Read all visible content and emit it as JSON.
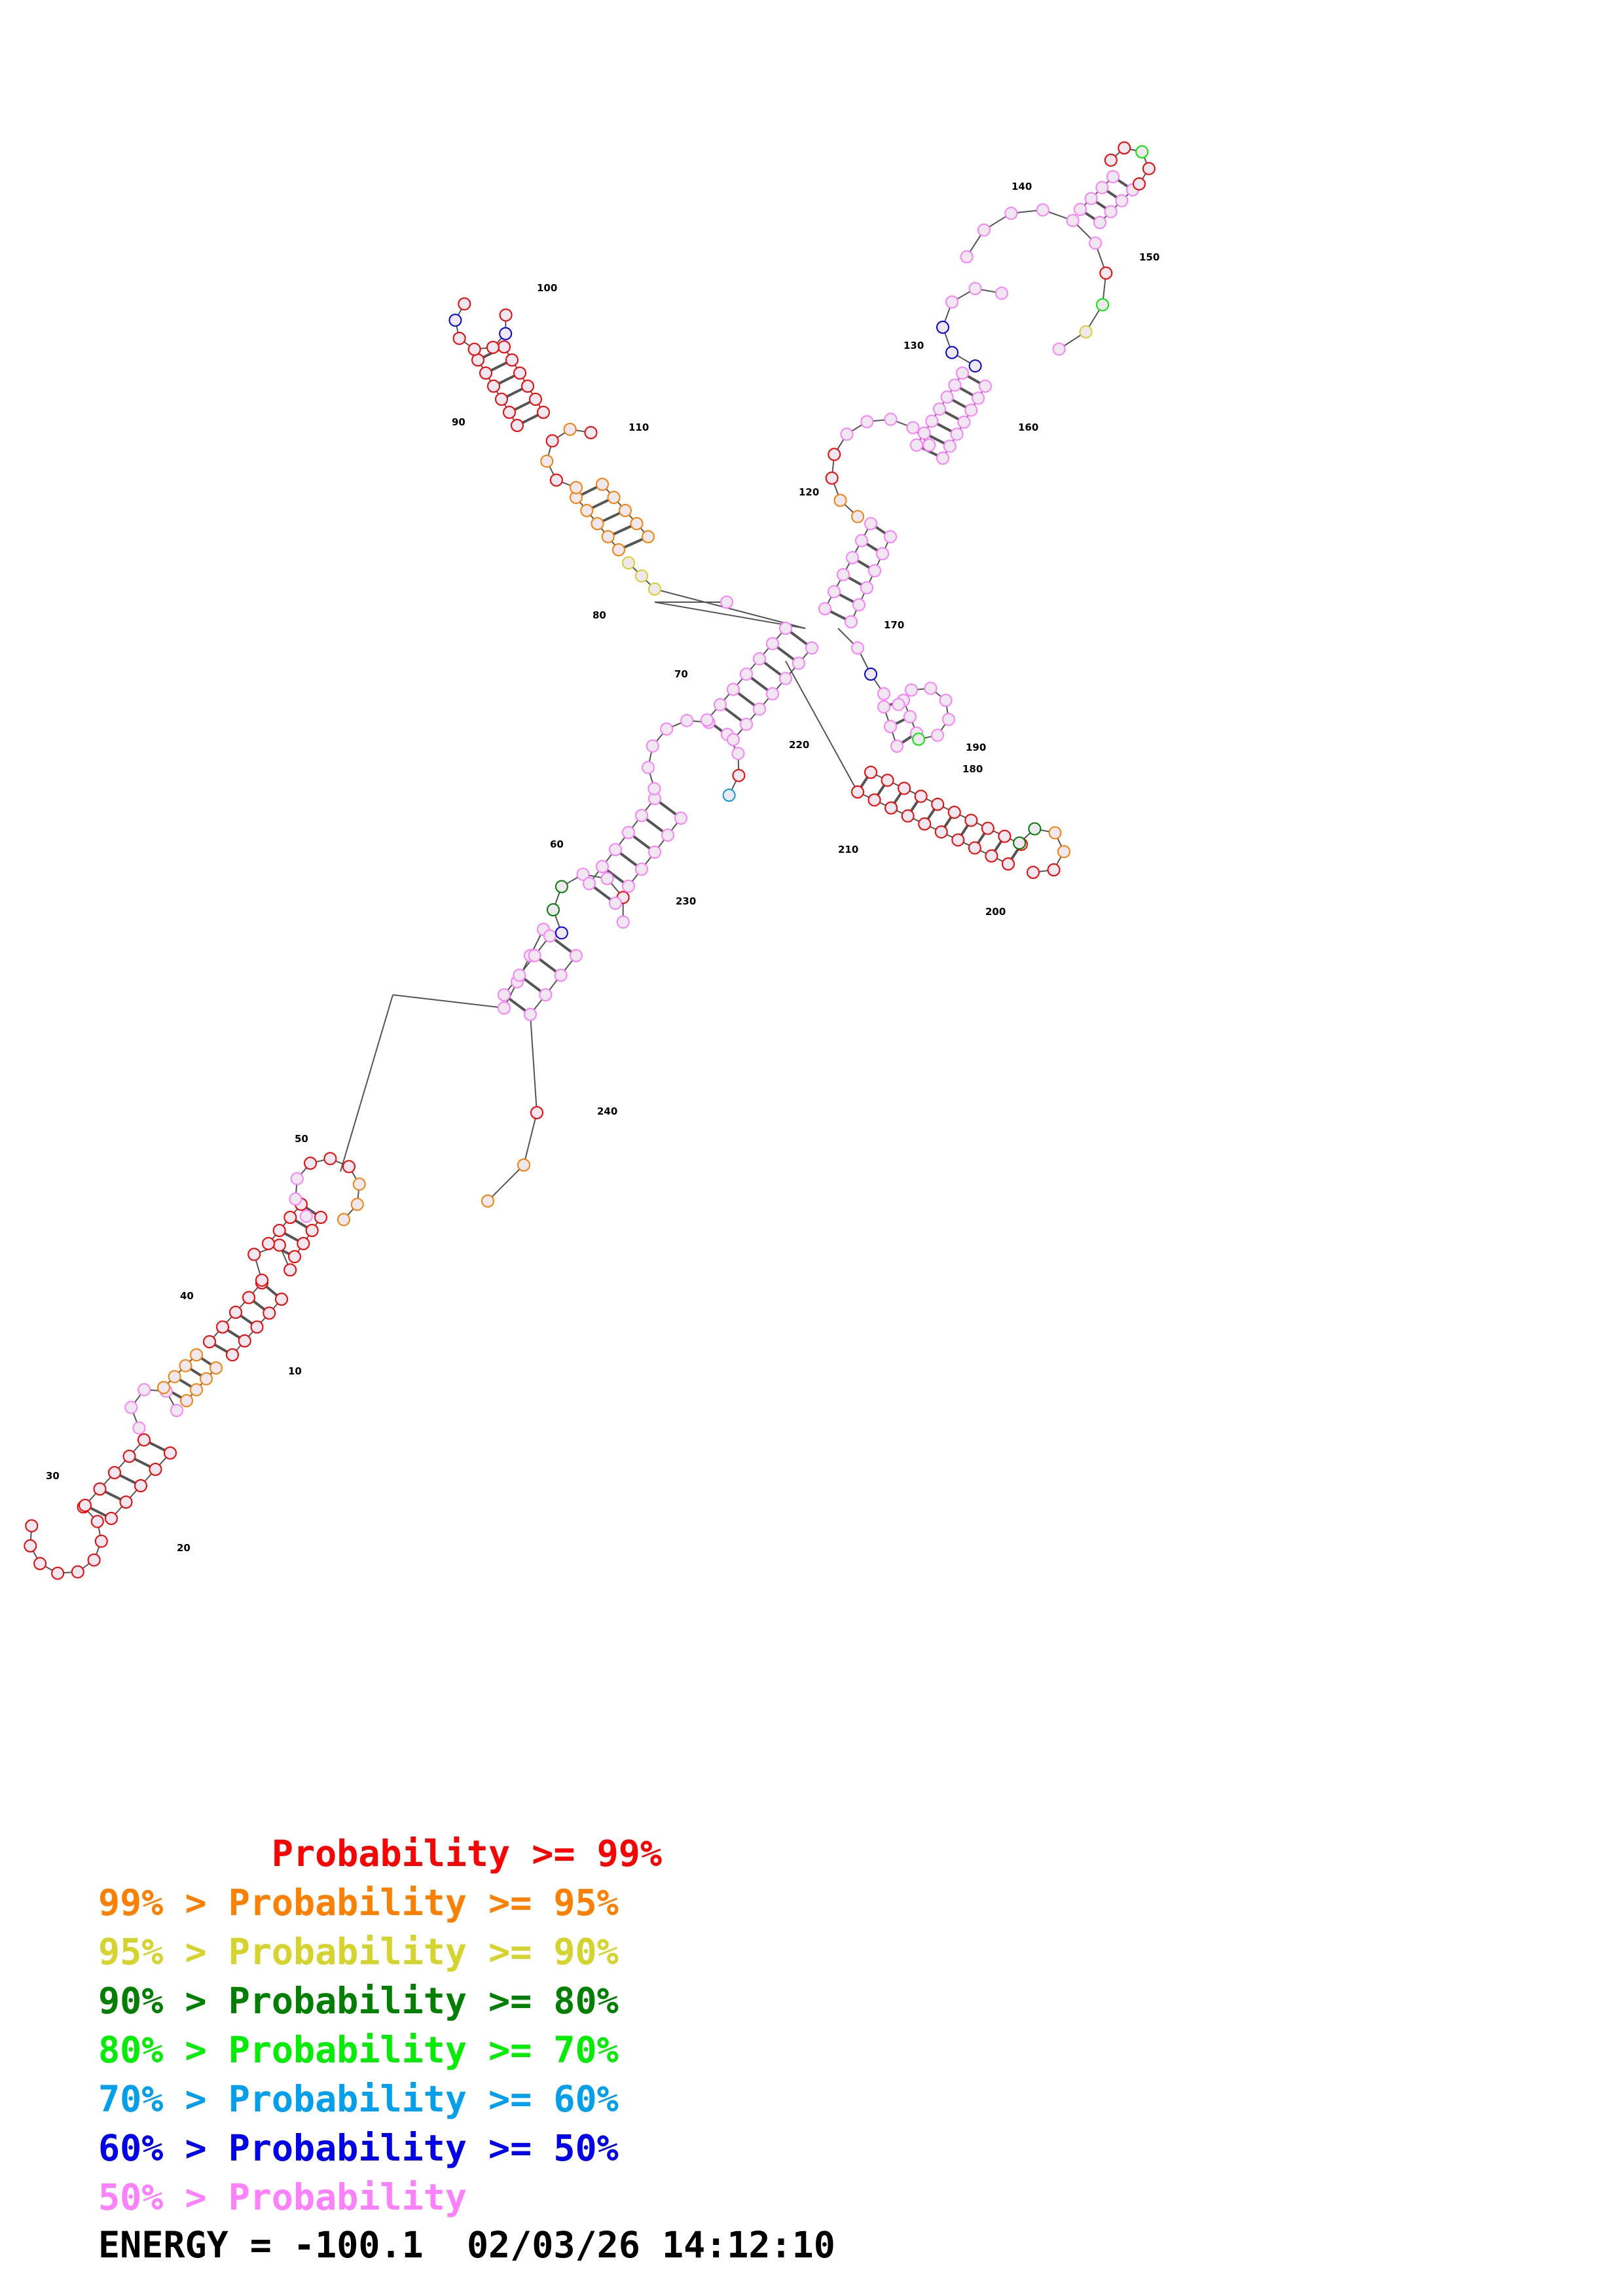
{
  "diagram": {
    "position_labels": [
      "10",
      "20",
      "30",
      "40",
      "50",
      "60",
      "70",
      "80",
      "90",
      "100",
      "110",
      "120",
      "130",
      "140",
      "150",
      "160",
      "170",
      "180",
      "190",
      "200",
      "210",
      "220",
      "230",
      "240"
    ],
    "colors": {
      "p99": "#ff0000",
      "p95": "#ff8000",
      "p90": "#d4d42a",
      "p80": "#008000",
      "p70": "#00ee00",
      "p60": "#00a0ee",
      "p50": "#0000ee",
      "plow": "#ff80ff"
    }
  },
  "legend": [
    {
      "range": "        ",
      "label": "Probability >= 99%",
      "color": "#ff0000"
    },
    {
      "range": "99% > ",
      "label": "Probability >= 95%",
      "color": "#ff8000"
    },
    {
      "range": "95% > ",
      "label": "Probability >= 90%",
      "color": "#d4d42a"
    },
    {
      "range": "90% > ",
      "label": "Probability >= 80%",
      "color": "#008000"
    },
    {
      "range": "80% > ",
      "label": "Probability >= 70%",
      "color": "#00ee00"
    },
    {
      "range": "70% > ",
      "label": "Probability >= 60%",
      "color": "#00a0ee"
    },
    {
      "range": "60% > ",
      "label": "Probability >= 50%",
      "color": "#0000ee"
    },
    {
      "range": "50% > ",
      "label": "Probability",
      "color": "#ff80ff"
    }
  ],
  "footer": {
    "energy": "ENERGY = -100.1",
    "timestamp": "02/03/26 14:12:10"
  }
}
